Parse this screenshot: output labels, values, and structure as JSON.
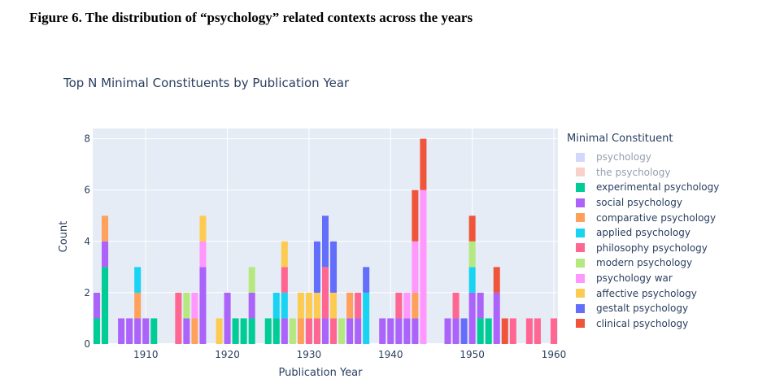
{
  "caption": "Figure 6. The distribution of “psychology” related contexts across the years",
  "chart_data": {
    "type": "bar",
    "barmode": "stack",
    "title": "Top N Minimal Constituents by Publication Year",
    "xlabel": "Publication Year",
    "ylabel": "Count",
    "xlim": [
      1903.5,
      1960.5
    ],
    "ylim": [
      0,
      8.4
    ],
    "xticks": [
      1910,
      1920,
      1930,
      1940,
      1950,
      1960
    ],
    "yticks": [
      0,
      2,
      4,
      6,
      8
    ],
    "grid": true,
    "legend_title": "Minimal Constituent",
    "legend_position": "right",
    "series": [
      {
        "name": "psychology",
        "color": "#aab0fa",
        "hidden": true,
        "points": []
      },
      {
        "name": "the psychology",
        "color": "#f6a596",
        "hidden": true,
        "points": []
      },
      {
        "name": "experimental psychology",
        "color": "#00cc96",
        "points": [
          [
            1904,
            1
          ],
          [
            1905,
            3
          ],
          [
            1911,
            1
          ],
          [
            1921,
            1
          ],
          [
            1922,
            1
          ],
          [
            1923,
            1
          ],
          [
            1925,
            1
          ],
          [
            1926,
            1
          ],
          [
            1951,
            1
          ],
          [
            1952,
            1
          ]
        ]
      },
      {
        "name": "social psychology",
        "color": "#ab63fa",
        "points": [
          [
            1904,
            1
          ],
          [
            1905,
            1
          ],
          [
            1907,
            1
          ],
          [
            1908,
            1
          ],
          [
            1909,
            1
          ],
          [
            1910,
            1
          ],
          [
            1915,
            1
          ],
          [
            1917,
            3
          ],
          [
            1920,
            2
          ],
          [
            1923,
            1
          ],
          [
            1927,
            1
          ],
          [
            1932,
            1
          ],
          [
            1935,
            1
          ],
          [
            1936,
            1
          ],
          [
            1939,
            1
          ],
          [
            1940,
            1
          ],
          [
            1941,
            1
          ],
          [
            1942,
            1
          ],
          [
            1943,
            1
          ],
          [
            1947,
            1
          ],
          [
            1948,
            1
          ],
          [
            1950,
            2
          ],
          [
            1951,
            1
          ],
          [
            1953,
            2
          ]
        ]
      },
      {
        "name": "comparative psychology",
        "color": "#ffa15a",
        "points": [
          [
            1905,
            1
          ],
          [
            1909,
            1
          ],
          [
            1916,
            1
          ],
          [
            1929,
            1
          ],
          [
            1935,
            1
          ],
          [
            1943,
            1
          ]
        ]
      },
      {
        "name": "applied psychology",
        "color": "#19d3f3",
        "points": [
          [
            1909,
            1
          ],
          [
            1926,
            1
          ],
          [
            1927,
            1
          ],
          [
            1937,
            2
          ],
          [
            1950,
            1
          ]
        ]
      },
      {
        "name": "philosophy psychology",
        "color": "#ff6692",
        "points": [
          [
            1914,
            2
          ],
          [
            1927,
            1
          ],
          [
            1930,
            1
          ],
          [
            1931,
            1
          ],
          [
            1932,
            2
          ],
          [
            1933,
            1
          ],
          [
            1936,
            1
          ],
          [
            1941,
            1
          ],
          [
            1948,
            1
          ],
          [
            1955,
            1
          ],
          [
            1957,
            1
          ],
          [
            1958,
            1
          ],
          [
            1960,
            1
          ]
        ]
      },
      {
        "name": "modern psychology",
        "color": "#b6e880",
        "points": [
          [
            1915,
            1
          ],
          [
            1923,
            1
          ],
          [
            1928,
            1
          ],
          [
            1934,
            1
          ],
          [
            1950,
            1
          ]
        ]
      },
      {
        "name": "psychology war",
        "color": "#ff97ff",
        "points": [
          [
            1916,
            1
          ],
          [
            1917,
            1
          ],
          [
            1942,
            1
          ],
          [
            1943,
            2
          ],
          [
            1944,
            6
          ]
        ]
      },
      {
        "name": "affective psychology",
        "color": "#fecb52",
        "points": [
          [
            1917,
            1
          ],
          [
            1919,
            1
          ],
          [
            1927,
            1
          ],
          [
            1929,
            1
          ],
          [
            1930,
            1
          ],
          [
            1931,
            1
          ],
          [
            1933,
            1
          ]
        ]
      },
      {
        "name": "gestalt psychology",
        "color": "#636efa",
        "points": [
          [
            1931,
            2
          ],
          [
            1932,
            2
          ],
          [
            1933,
            2
          ],
          [
            1937,
            1
          ],
          [
            1949,
            1
          ]
        ]
      },
      {
        "name": "clinical psychology",
        "color": "#ef553b",
        "points": [
          [
            1943,
            2
          ],
          [
            1944,
            2
          ],
          [
            1950,
            1
          ],
          [
            1953,
            1
          ],
          [
            1954,
            1
          ]
        ]
      }
    ]
  }
}
